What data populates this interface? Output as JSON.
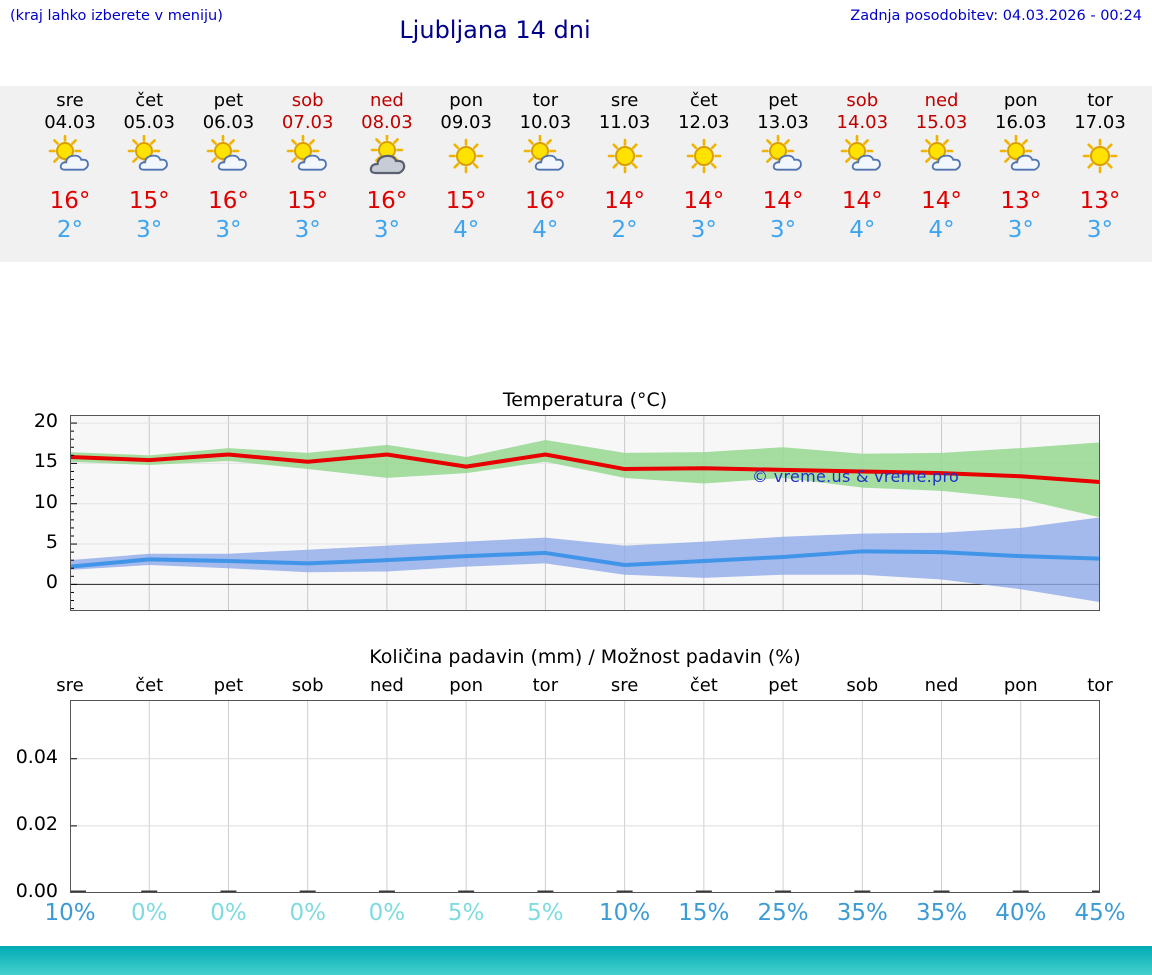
{
  "header": {
    "hint": "(kraj lahko izberete v meniju)",
    "title": "Ljubljana 14 dni",
    "updated": "Zadnja posodobitev: 04.03.2026 - 00:24"
  },
  "forecast": {
    "days": [
      {
        "name": "sre",
        "date": "04.03",
        "weekend": false,
        "icon": "sun-cloud",
        "tmax": "16°",
        "tmin": "2°"
      },
      {
        "name": "čet",
        "date": "05.03",
        "weekend": false,
        "icon": "sun-cloud",
        "tmax": "15°",
        "tmin": "3°"
      },
      {
        "name": "pet",
        "date": "06.03",
        "weekend": false,
        "icon": "sun-cloud",
        "tmax": "16°",
        "tmin": "3°"
      },
      {
        "name": "sob",
        "date": "07.03",
        "weekend": true,
        "icon": "sun-cloud",
        "tmax": "15°",
        "tmin": "3°"
      },
      {
        "name": "ned",
        "date": "08.03",
        "weekend": true,
        "icon": "sun-gray-cloud",
        "tmax": "16°",
        "tmin": "3°"
      },
      {
        "name": "pon",
        "date": "09.03",
        "weekend": false,
        "icon": "sun",
        "tmax": "15°",
        "tmin": "4°"
      },
      {
        "name": "tor",
        "date": "10.03",
        "weekend": false,
        "icon": "sun-cloud",
        "tmax": "16°",
        "tmin": "4°"
      },
      {
        "name": "sre",
        "date": "11.03",
        "weekend": false,
        "icon": "sun",
        "tmax": "14°",
        "tmin": "2°"
      },
      {
        "name": "čet",
        "date": "12.03",
        "weekend": false,
        "icon": "sun",
        "tmax": "14°",
        "tmin": "3°"
      },
      {
        "name": "pet",
        "date": "13.03",
        "weekend": false,
        "icon": "sun-cloud",
        "tmax": "14°",
        "tmin": "3°"
      },
      {
        "name": "sob",
        "date": "14.03",
        "weekend": true,
        "icon": "sun-cloud",
        "tmax": "14°",
        "tmin": "4°"
      },
      {
        "name": "ned",
        "date": "15.03",
        "weekend": true,
        "icon": "sun-cloud",
        "tmax": "14°",
        "tmin": "4°"
      },
      {
        "name": "pon",
        "date": "16.03",
        "weekend": false,
        "icon": "sun-cloud",
        "tmax": "13°",
        "tmin": "3°"
      },
      {
        "name": "tor",
        "date": "17.03",
        "weekend": false,
        "icon": "sun",
        "tmax": "13°",
        "tmin": "3°"
      }
    ]
  },
  "colors": {
    "header_blue": "#0000cd",
    "title_blue": "#00008b",
    "weekend_red": "#c00000",
    "tmax_red": "#e00000",
    "tmin_blue": "#3da5f0",
    "strip_bg": "#f1f1f1",
    "prob_low": "#7fdbe0",
    "prob_high": "#3d9bd4",
    "footer_teal_top": "#00aab4",
    "footer_teal_bottom": "#45d0cd"
  },
  "chart_data": [
    {
      "type": "line",
      "title": "Temperatura (°C)",
      "x_labels": [
        "sre",
        "čet",
        "pet",
        "sob",
        "ned",
        "pon",
        "tor",
        "sre",
        "čet",
        "pet",
        "sob",
        "ned",
        "pon",
        "tor"
      ],
      "ylim": [
        -3.3,
        21.0
      ],
      "yticks": [
        0,
        5,
        10,
        15,
        20
      ],
      "grid": true,
      "plot_bg": "#f7f7f7",
      "legend": "none",
      "series": [
        {
          "name": "max-temp",
          "color": "#e80000",
          "width": 4,
          "values": [
            15.8,
            15.4,
            16.1,
            15.2,
            16.1,
            14.6,
            16.1,
            14.3,
            14.4,
            14.2,
            14.0,
            13.8,
            13.4,
            12.7
          ]
        },
        {
          "name": "min-temp",
          "color": "#4095e8",
          "width": 4,
          "values": [
            2.2,
            3.1,
            2.9,
            2.6,
            3.0,
            3.5,
            3.9,
            2.4,
            2.9,
            3.4,
            4.1,
            4.0,
            3.5,
            3.2
          ]
        }
      ],
      "bands": [
        {
          "name": "max-temp-range",
          "color": "#95d88f",
          "opacity": 0.85,
          "upper": [
            16.4,
            16.0,
            16.9,
            16.3,
            17.3,
            15.8,
            17.9,
            16.3,
            16.4,
            17.0,
            16.2,
            16.3,
            16.9,
            17.6
          ],
          "lower": [
            15.2,
            14.8,
            15.3,
            14.3,
            13.2,
            13.8,
            15.2,
            13.2,
            12.5,
            13.2,
            12.0,
            11.6,
            10.6,
            8.3
          ]
        },
        {
          "name": "min-temp-range",
          "color": "#8fa9e8",
          "opacity": 0.8,
          "upper": [
            3.0,
            3.8,
            3.8,
            4.3,
            4.8,
            5.3,
            5.8,
            4.8,
            5.3,
            5.9,
            6.3,
            6.4,
            7.0,
            8.3
          ],
          "lower": [
            1.8,
            2.4,
            2.0,
            1.5,
            1.6,
            2.2,
            2.6,
            1.2,
            0.8,
            1.2,
            1.2,
            0.6,
            -0.6,
            -2.2
          ]
        }
      ],
      "watermark": "© vreme.us & vreme.pro"
    },
    {
      "type": "bar",
      "title": "Količina padavin (mm) / Možnost padavin (%)",
      "categories": [
        "sre",
        "čet",
        "pet",
        "sob",
        "ned",
        "pon",
        "tor",
        "sre",
        "čet",
        "pet",
        "sob",
        "ned",
        "pon",
        "tor"
      ],
      "values": [
        0,
        0,
        0,
        0,
        0,
        0,
        0,
        0,
        0,
        0,
        0,
        0,
        0,
        0
      ],
      "ylim": [
        0,
        0.0575
      ],
      "ytick_values": [
        0,
        0.02,
        0.04
      ],
      "yticks": [
        "0.00",
        "0.02",
        "0.04"
      ],
      "plot_bg": "#ffffff",
      "probabilities": [
        {
          "label": "10%",
          "level": "high"
        },
        {
          "label": "0%",
          "level": "low"
        },
        {
          "label": "0%",
          "level": "low"
        },
        {
          "label": "0%",
          "level": "low"
        },
        {
          "label": "0%",
          "level": "low"
        },
        {
          "label": "5%",
          "level": "low"
        },
        {
          "label": "5%",
          "level": "low"
        },
        {
          "label": "10%",
          "level": "high"
        },
        {
          "label": "15%",
          "level": "high"
        },
        {
          "label": "25%",
          "level": "high"
        },
        {
          "label": "35%",
          "level": "high"
        },
        {
          "label": "35%",
          "level": "high"
        },
        {
          "label": "40%",
          "level": "high"
        },
        {
          "label": "45%",
          "level": "high"
        }
      ]
    }
  ]
}
